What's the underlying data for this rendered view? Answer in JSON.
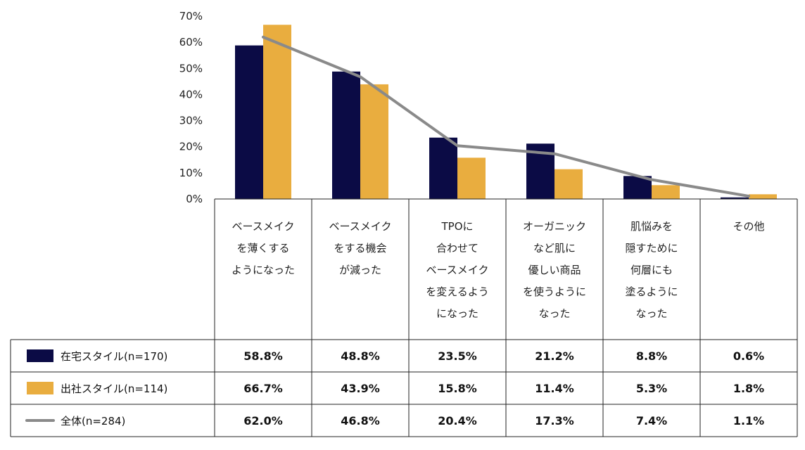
{
  "chart_data": {
    "type": "bar",
    "y_axis": {
      "min": 0,
      "max": 70,
      "step": 10,
      "unit": "%"
    },
    "y_tick_labels": [
      "0%",
      "10%",
      "20%",
      "30%",
      "40%",
      "50%",
      "60%",
      "70%"
    ],
    "categories": [
      [
        "ベースメイク",
        "を薄くする",
        "ようになった"
      ],
      [
        "ベースメイク",
        "をする機会",
        "が減った"
      ],
      [
        "TPOに",
        "合わせて",
        "ベースメイク",
        "を変えるよう",
        "になった"
      ],
      [
        "オーガニック",
        "など肌に",
        "優しい商品",
        "を使うように",
        "なった"
      ],
      [
        "肌悩みを",
        "隠すために",
        "何層にも",
        "塗るように",
        "なった"
      ],
      [
        "その他"
      ]
    ],
    "series": [
      {
        "name": "在宅スタイル(n=170)",
        "type": "bar",
        "color": "#0b0b45",
        "values": [
          58.8,
          48.8,
          23.5,
          21.2,
          8.8,
          0.6
        ],
        "labels": [
          "58.8%",
          "48.8%",
          "23.5%",
          "21.2%",
          "8.8%",
          "0.6%"
        ]
      },
      {
        "name": "出社スタイル(n=114)",
        "type": "bar",
        "color": "#e9ad3f",
        "values": [
          66.7,
          43.9,
          15.8,
          11.4,
          5.3,
          1.8
        ],
        "labels": [
          "66.7%",
          "43.9%",
          "15.8%",
          "11.4%",
          "5.3%",
          "1.8%"
        ]
      },
      {
        "name": "全体(n=284)",
        "type": "line",
        "color": "#8a8a8a",
        "values": [
          62.0,
          46.8,
          20.4,
          17.3,
          7.4,
          1.1
        ],
        "labels": [
          "62.0%",
          "46.8%",
          "20.4%",
          "17.3%",
          "7.4%",
          "1.1%"
        ]
      }
    ],
    "grid": false,
    "legend": "table-left"
  }
}
